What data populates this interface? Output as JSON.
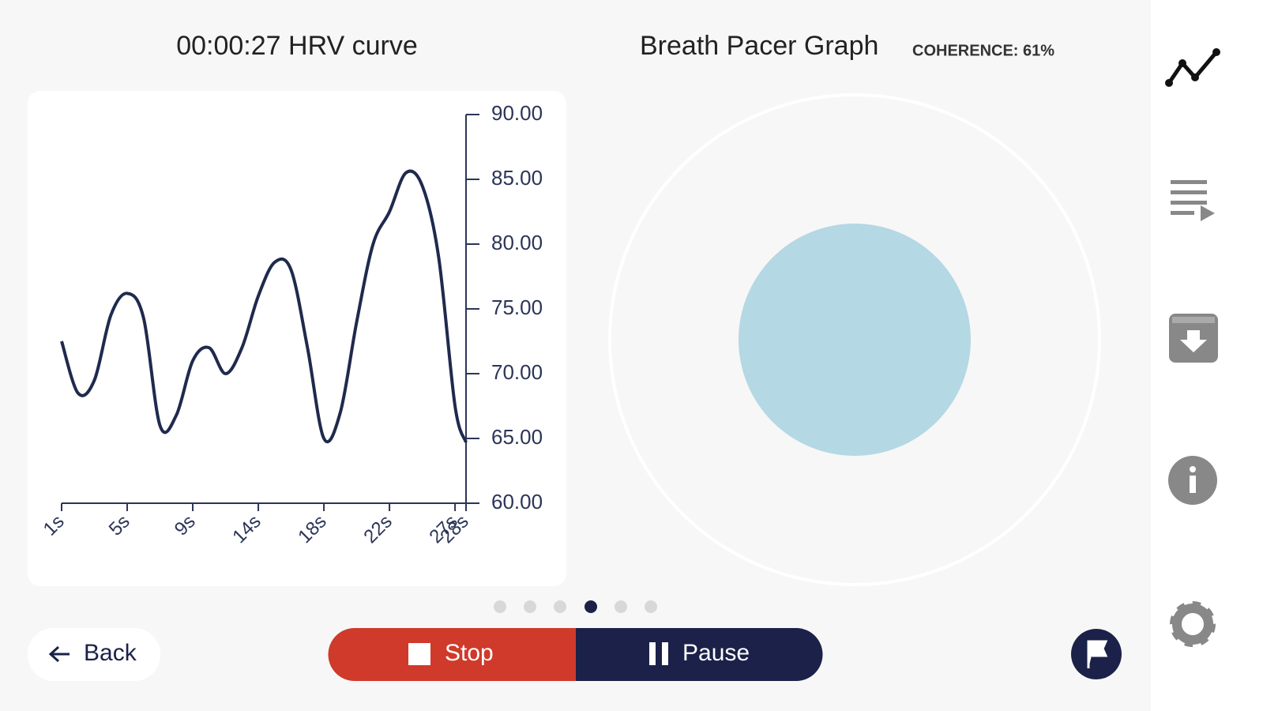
{
  "header": {
    "hrv_title": "00:00:27 HRV curve",
    "pacer_title": "Breath Pacer Graph",
    "coherence": "COHERENCE: 61%"
  },
  "chart_data": {
    "type": "line",
    "color": "#1f2a4d",
    "x": [
      0,
      1,
      2,
      3,
      4,
      5,
      6,
      7,
      8,
      9,
      10,
      11,
      12,
      13,
      14,
      15,
      16,
      17,
      18,
      19,
      20,
      21,
      22,
      23,
      24,
      24.67
    ],
    "values": [
      72.5,
      68.5,
      69.5,
      74.5,
      76.2,
      74.3,
      66.0,
      66.8,
      71.0,
      72.0,
      70.0,
      72.0,
      76.0,
      78.6,
      78.0,
      72.0,
      65.0,
      67.0,
      74.0,
      80.0,
      82.5,
      85.5,
      84.5,
      79.0,
      67.5,
      64.7
    ],
    "xlim": [
      0,
      24.67
    ],
    "xticks": [
      {
        "value": 0,
        "label": "1s"
      },
      {
        "value": 4,
        "label": "5s"
      },
      {
        "value": 8,
        "label": "9s"
      },
      {
        "value": 12,
        "label": "14s"
      },
      {
        "value": 16,
        "label": "18s"
      },
      {
        "value": 20,
        "label": "22s"
      },
      {
        "value": 24,
        "label": "27s"
      },
      {
        "value": 24.67,
        "label": "28s"
      }
    ],
    "ylim": [
      60,
      90
    ],
    "yticks": [
      {
        "value": 60,
        "label": "60.00"
      },
      {
        "value": 65,
        "label": "65.00"
      },
      {
        "value": 70,
        "label": "70.00"
      },
      {
        "value": 75,
        "label": "75.00"
      },
      {
        "value": 80,
        "label": "80.00"
      },
      {
        "value": 85,
        "label": "85.00"
      },
      {
        "value": 90,
        "label": "90.00"
      }
    ]
  },
  "buttons": {
    "back": "Back",
    "stop": "Stop",
    "pause": "Pause"
  }
}
